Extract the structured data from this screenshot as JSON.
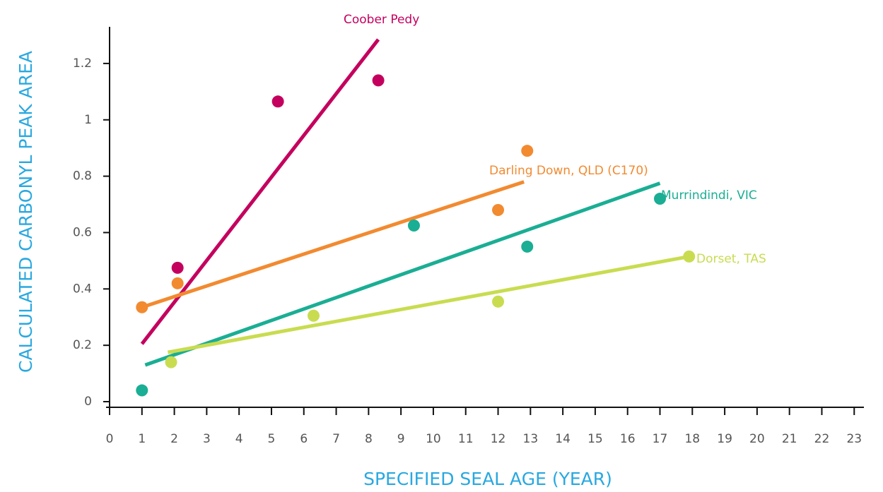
{
  "chart_data": {
    "type": "scatter",
    "xlabel": "SPECIFIED SEAL AGE (YEAR)",
    "ylabel": "CALCULATED CARBONYL PEAK AREA",
    "xlim": [
      0,
      23.3
    ],
    "ylim": [
      -0.02,
      1.33
    ],
    "xticks": [
      0,
      1,
      2,
      3,
      4,
      5,
      6,
      7,
      8,
      9,
      10,
      11,
      12,
      13,
      14,
      15,
      16,
      17,
      18,
      19,
      20,
      21,
      22,
      23
    ],
    "yticks": [
      0,
      0.2,
      0.4,
      0.6,
      0.8,
      1,
      1.2
    ],
    "series": [
      {
        "name": "Coober Pedy",
        "color": "#c4005e",
        "x": [
          2.1,
          5.2,
          8.3
        ],
        "values": [
          0.475,
          1.065,
          1.14
        ],
        "trend": {
          "x": [
            1.0,
            8.3
          ],
          "values": [
            0.205,
            1.285
          ]
        }
      },
      {
        "name": "Darling Down, QLD (C170)",
        "color": "#f28a30",
        "x": [
          1.0,
          2.1,
          12.0,
          12.9
        ],
        "values": [
          0.335,
          0.42,
          0.68,
          0.89
        ],
        "trend": {
          "x": [
            1.0,
            12.8
          ],
          "values": [
            0.335,
            0.78
          ]
        }
      },
      {
        "name": "Murrindindi, VIC",
        "color": "#1aae94",
        "x": [
          1.0,
          9.4,
          12.9,
          17.0
        ],
        "values": [
          0.04,
          0.625,
          0.55,
          0.72
        ],
        "trend": {
          "x": [
            1.1,
            17.0
          ],
          "values": [
            0.13,
            0.775
          ]
        }
      },
      {
        "name": "Dorset, TAS",
        "color": "#c9dc50",
        "x": [
          1.9,
          6.3,
          12.0,
          17.9
        ],
        "values": [
          0.14,
          0.305,
          0.355,
          0.515
        ],
        "trend": {
          "x": [
            1.8,
            17.9
          ],
          "values": [
            0.175,
            0.515
          ]
        }
      }
    ]
  }
}
